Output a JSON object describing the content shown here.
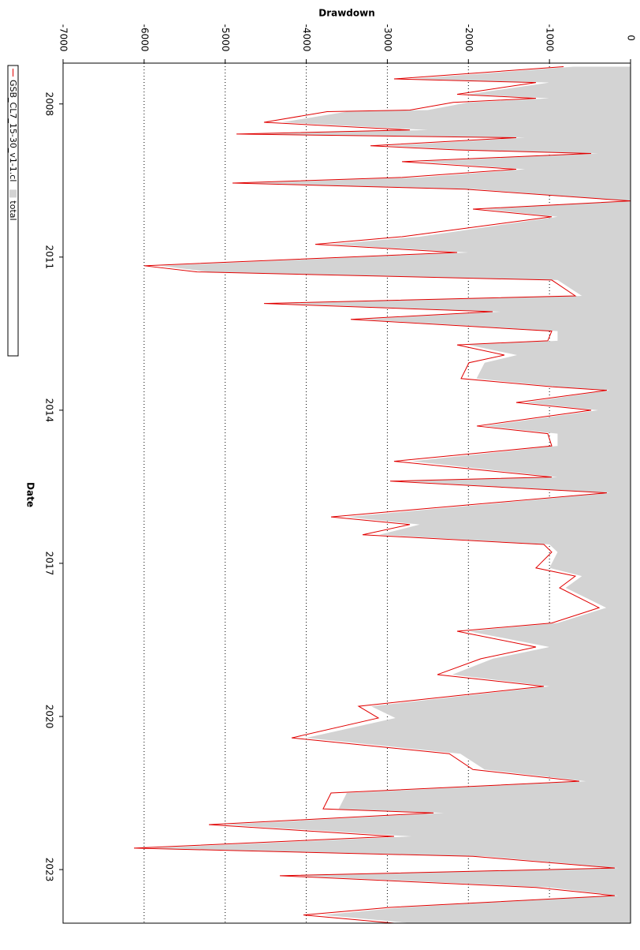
{
  "chart_data": {
    "type": "area",
    "title": "Drawdown",
    "x_label": "Date",
    "x": [
      2007.27,
      2007.51,
      2007.58,
      2007.81,
      2007.89,
      2007.97,
      2008.12,
      2008.15,
      2008.36,
      2008.51,
      2008.59,
      2008.66,
      2008.82,
      2008.9,
      2008.97,
      2009.13,
      2009.28,
      2009.44,
      2009.55,
      2009.67,
      2009.9,
      2010.06,
      2010.21,
      2010.6,
      2010.75,
      2010.91,
      2011.17,
      2011.29,
      2011.45,
      2011.76,
      2011.91,
      2012.07,
      2012.22,
      2012.45,
      2012.64,
      2012.72,
      2012.92,
      2013.07,
      2013.38,
      2013.54,
      2013.61,
      2013.85,
      2014.0,
      2014.31,
      2014.46,
      2014.7,
      2015.0,
      2015.31,
      2015.39,
      2015.62,
      2015.86,
      2016.09,
      2016.24,
      2016.44,
      2016.63,
      2016.78,
      2017.09,
      2017.25,
      2017.48,
      2017.87,
      2018.17,
      2018.33,
      2018.64,
      2018.87,
      2019.18,
      2019.41,
      2019.8,
      2020.03,
      2020.42,
      2020.73,
      2021.04,
      2021.27,
      2021.5,
      2021.81,
      2021.89,
      2022.12,
      2022.35,
      2022.58,
      2022.74,
      2022.97,
      2023.12,
      2023.35,
      2023.51,
      2023.74,
      2023.89,
      2024.05
    ],
    "series": [
      {
        "name": "GSB_CL7_15-30_v1-1.cl",
        "color": "#e00000",
        "style": "line",
        "values": [
          -826,
          -2917,
          -1167,
          -2139,
          -1167,
          -2187,
          -2722,
          -3743,
          -4521,
          -2722,
          -4861,
          -1410,
          -3208,
          -2139,
          -486,
          -2819,
          -1410,
          -2819,
          -4910,
          -2042,
          0,
          -1944,
          -972,
          -2819,
          -3889,
          -2139,
          -5999,
          -5347,
          -972,
          -681,
          -4521,
          -1701,
          -3451,
          -972,
          -1021,
          -2139,
          -1556,
          -1993,
          -2090,
          -972,
          -292,
          -1410,
          -486,
          -1896,
          -1021,
          -972,
          -2917,
          -972,
          -2965,
          -292,
          -2042,
          -3694,
          -2722,
          -3305,
          -1069,
          -972,
          -1167,
          -681,
          -875,
          -389,
          -972,
          -2139,
          -1167,
          -1847,
          -2382,
          -1069,
          -3354,
          -3111,
          -4180,
          -2236,
          -1944,
          -632,
          -3694,
          -3792,
          -2430,
          -5201,
          -2917,
          -6125,
          -1944,
          -194,
          -4326,
          -1167,
          -194,
          -2965,
          -4035,
          -2917
        ]
      },
      {
        "name": "total",
        "color": "#d3d3d3",
        "style": "area",
        "values": [
          -700,
          -2700,
          -1000,
          -2000,
          -1000,
          -2000,
          -2500,
          -3500,
          -4300,
          -2500,
          -4600,
          -1300,
          -3000,
          -2000,
          -400,
          -2600,
          -1300,
          -2600,
          -4700,
          -1900,
          0,
          -1800,
          -900,
          -2600,
          -3700,
          -2000,
          -5800,
          -5200,
          -900,
          -600,
          -4300,
          -1600,
          -3300,
          -900,
          -900,
          -2000,
          -1400,
          -1800,
          -1900,
          -900,
          -250,
          -1300,
          -400,
          -1800,
          -900,
          -900,
          -2700,
          -900,
          -2800,
          -250,
          -1900,
          -3500,
          -2600,
          -3100,
          -1000,
          -900,
          -1000,
          -600,
          -800,
          -300,
          -900,
          -2000,
          -1000,
          -1700,
          -2200,
          -1000,
          -3200,
          -2900,
          -4000,
          -2100,
          -1800,
          -550,
          -3500,
          -3600,
          -2300,
          -5000,
          -2700,
          -5900,
          -1800,
          -150,
          -4100,
          -1000,
          -150,
          -2800,
          -3800,
          -2700
        ]
      }
    ],
    "xlim": [
      2007.2,
      2024.05
    ],
    "xticks": [
      2008,
      2011,
      2014,
      2017,
      2020,
      2023
    ],
    "ylim": [
      -7000,
      0
    ],
    "yticks": [
      -7000,
      -6000,
      -5000,
      -4000,
      -3000,
      -2000,
      -1000,
      0
    ],
    "grid": true,
    "legend": "left"
  }
}
